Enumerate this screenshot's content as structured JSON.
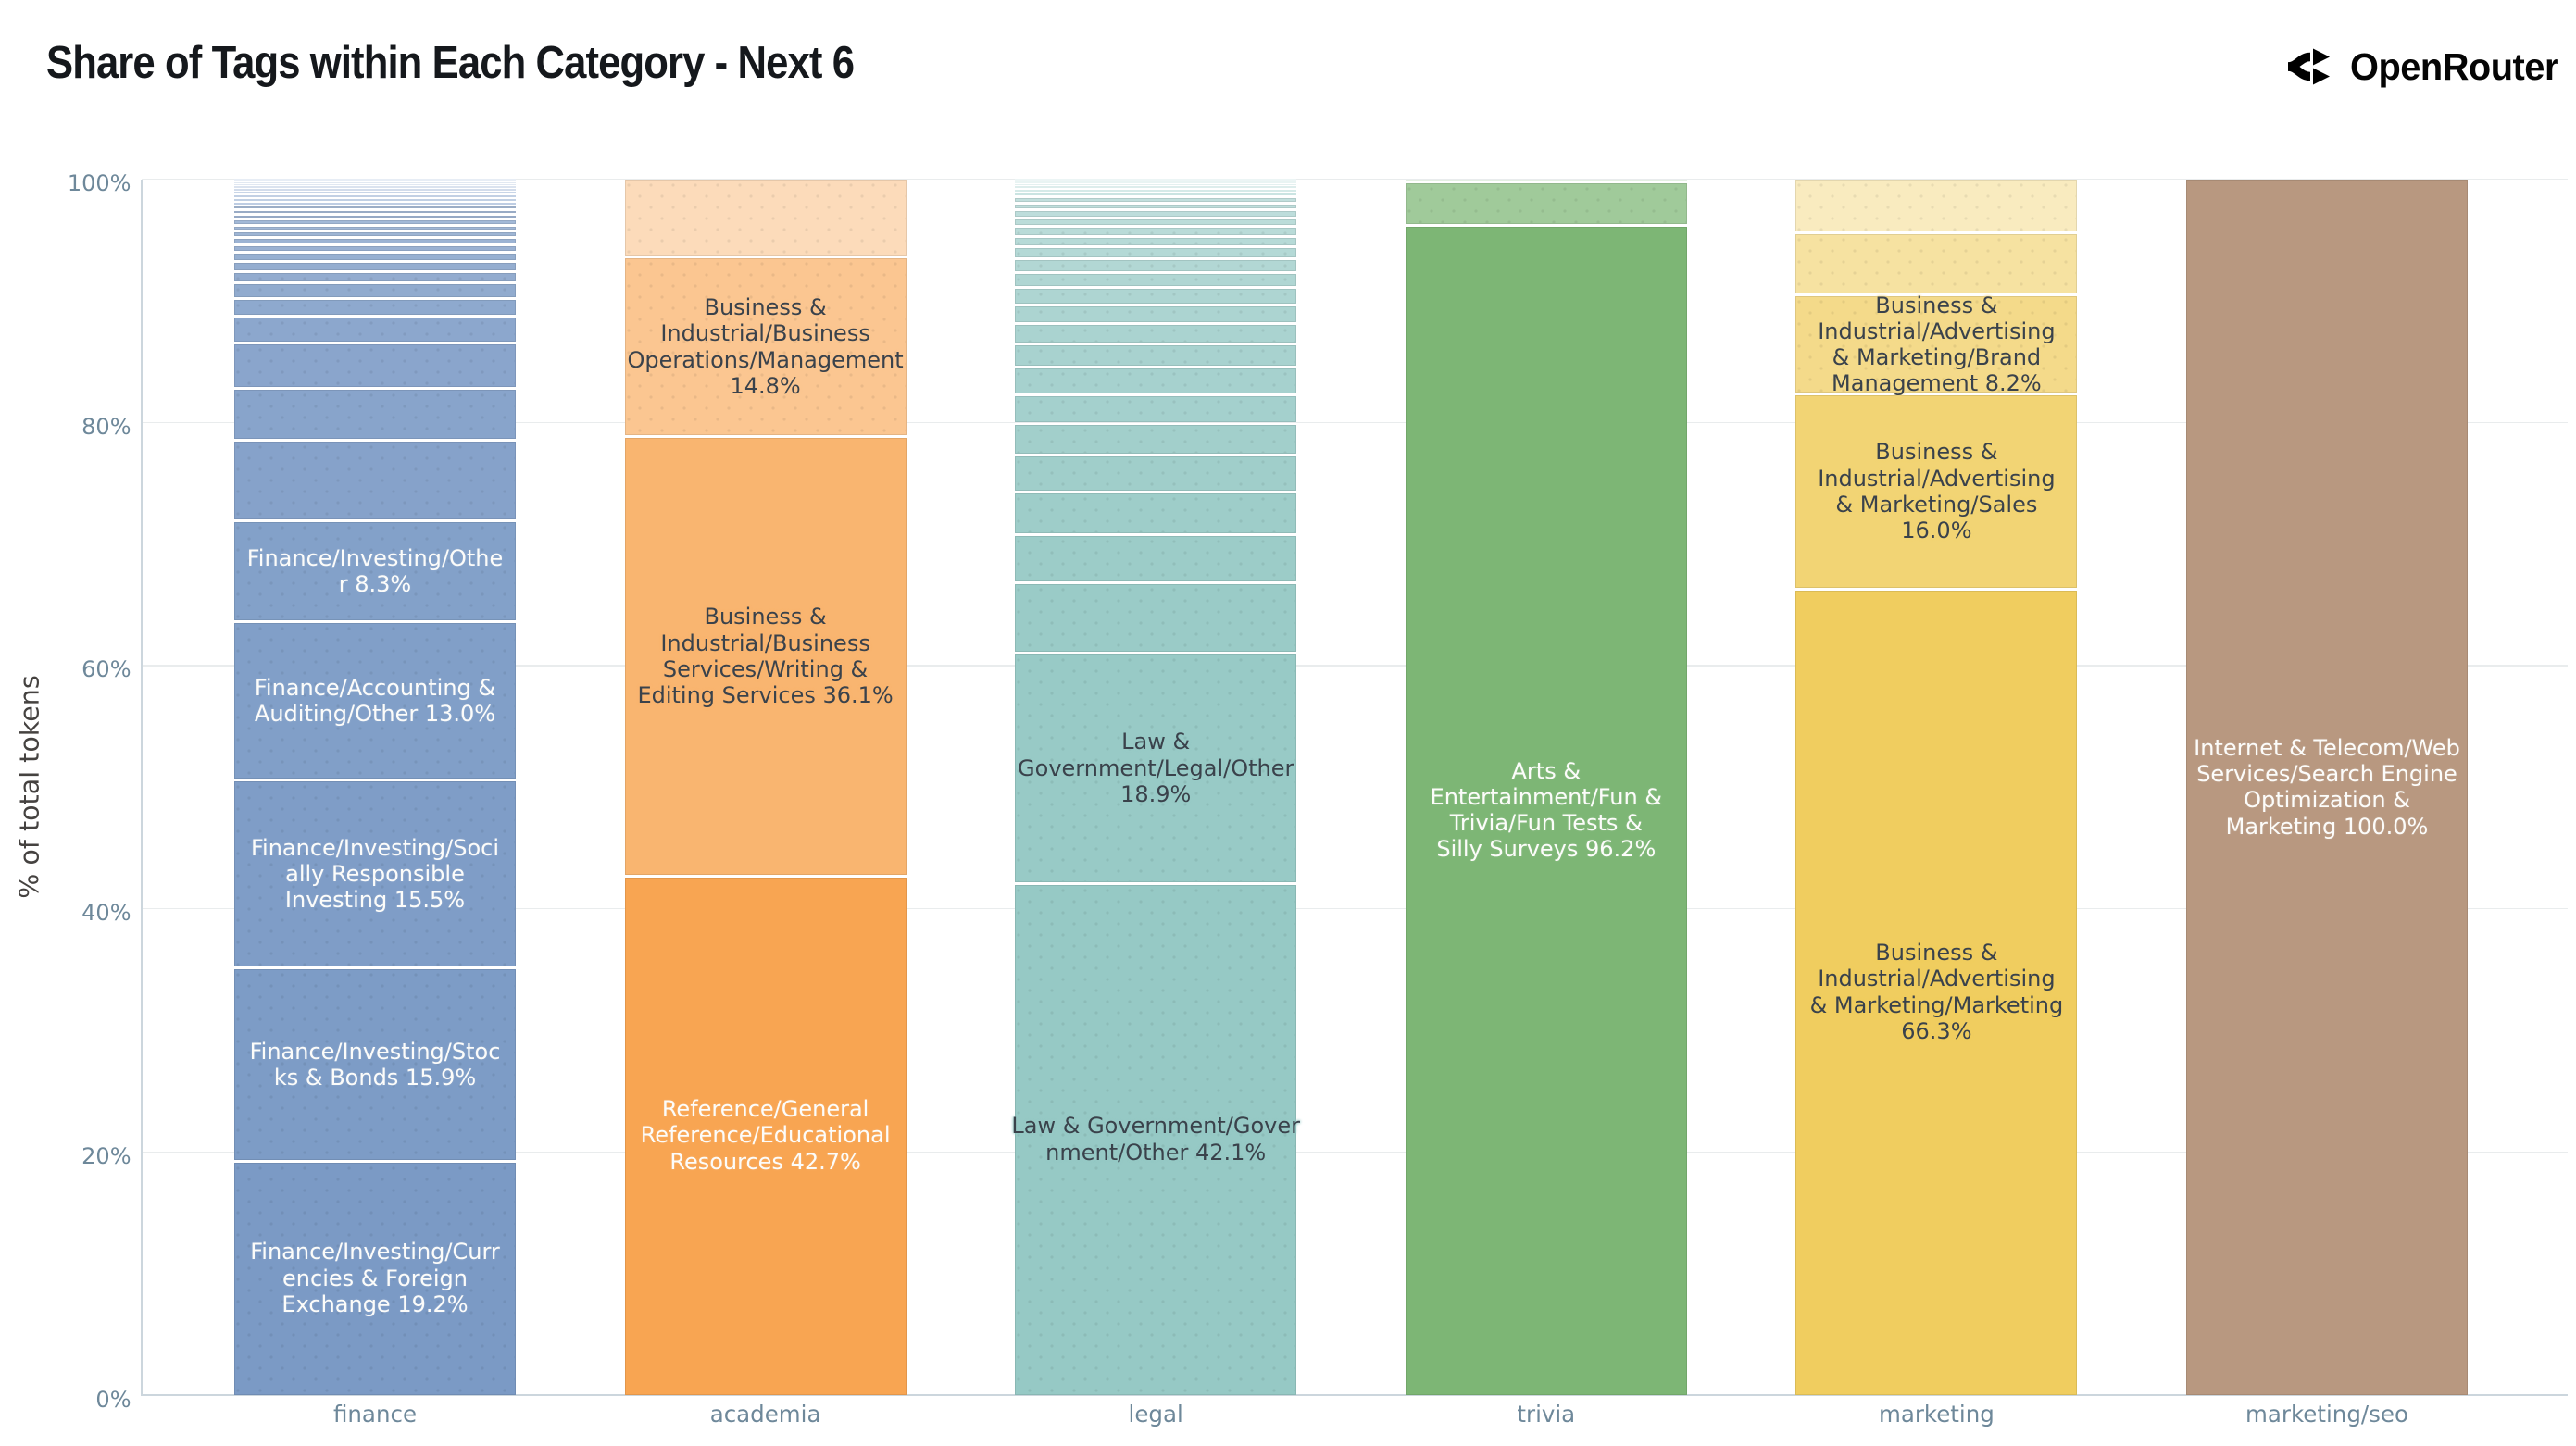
{
  "title": "Share of Tags within Each Category - Next 6",
  "brand": {
    "name": "OpenRouter",
    "icon": "openrouter-logo-icon"
  },
  "chart_data": {
    "type": "bar",
    "stacked": true,
    "units": "percent",
    "title": "Share of Tags within Each Category - Next 6",
    "xlabel": "",
    "ylabel": "% of total tokens",
    "ylim": [
      0,
      100
    ],
    "yticks": [
      {
        "value": 0,
        "label": "0%"
      },
      {
        "value": 20,
        "label": "20%"
      },
      {
        "value": 40,
        "label": "40%"
      },
      {
        "value": 60,
        "label": "60%"
      },
      {
        "value": 80,
        "label": "80%"
      },
      {
        "value": 100,
        "label": "100%"
      }
    ],
    "grid": true,
    "legend": "none",
    "categories": [
      "finance",
      "academia",
      "legal",
      "trivia",
      "marketing",
      "marketing/seo"
    ],
    "category_colors": {
      "finance": "#7b9ac5",
      "academia": "#f8a552",
      "legal": "#96c9c5",
      "trivia": "#7db675",
      "marketing": "#f0cd5f",
      "marketing/seo": "#b89880"
    },
    "bars": [
      {
        "category": "finance",
        "segments": [
          {
            "value": 19.2,
            "label": "Finance/Investing/Currencies & Foreign Exchange 19.2%",
            "label_lines": [
              "Finance/Investing/Curr",
              "encies & Foreign",
              "Exchange 19.2%"
            ]
          },
          {
            "value": 15.9,
            "label": "Finance/Investing/Stocks & Bonds 15.9%",
            "label_lines": [
              "Finance/Investing/Stoc",
              "ks & Bonds 15.9%"
            ]
          },
          {
            "value": 15.5,
            "label": "Finance/Investing/Socially Responsible Investing 15.5%",
            "label_lines": [
              "Finance/Investing/Soci",
              "ally Responsible",
              "Investing 15.5%"
            ]
          },
          {
            "value": 13.0,
            "label": "Finance/Accounting & Auditing/Other 13.0%",
            "label_lines": [
              "Finance/Accounting &",
              "Auditing/Other 13.0%"
            ]
          },
          {
            "value": 8.3,
            "label": "Finance/Investing/Other 8.3%",
            "label_lines": [
              "Finance/Investing/Othe",
              "r 8.3%"
            ]
          },
          {
            "value": 6.6,
            "label": null
          },
          {
            "value": 4.3,
            "label": null
          },
          {
            "value": 3.7,
            "label": null
          },
          {
            "value": 2.2,
            "label": null
          },
          {
            "value": 1.5,
            "label": null
          },
          {
            "value": 1.3,
            "label": null
          },
          {
            "value": 0.9,
            "label": null
          },
          {
            "value": 0.8,
            "label": null
          },
          {
            "value": 0.8,
            "label": null
          },
          {
            "value": 0.6,
            "label": null
          },
          {
            "value": 0.6,
            "label": null
          },
          {
            "value": 0.5,
            "label": null
          },
          {
            "value": 0.5,
            "label": null
          },
          {
            "value": 0.5,
            "label": null
          },
          {
            "value": 0.4,
            "label": null
          },
          {
            "value": 0.4,
            "label": null
          },
          {
            "value": 0.35,
            "label": null
          },
          {
            "value": 0.3,
            "label": null
          },
          {
            "value": 0.3,
            "label": null
          },
          {
            "value": 0.3,
            "label": null
          },
          {
            "value": 0.28,
            "label": null
          },
          {
            "value": 0.24,
            "label": null
          },
          {
            "value": 0.2,
            "label": null
          },
          {
            "value": 0.17,
            "label": null
          },
          {
            "value": 0.14,
            "label": null
          },
          {
            "value": 0.11,
            "label": null
          },
          {
            "value": 0.07,
            "label": null
          },
          {
            "value": 0.04,
            "label": null
          }
        ]
      },
      {
        "category": "academia",
        "segments": [
          {
            "value": 42.7,
            "label": "Reference/General Reference/Educational Resources 42.7%",
            "label_lines": [
              "Reference/General",
              "Reference/Educational",
              "Resources 42.7%"
            ]
          },
          {
            "value": 36.1,
            "label": "Business & Industrial/Business Services/Writing & Editing Services 36.1%",
            "label_lines": [
              "Business &",
              "Industrial/Business",
              "Services/Writing &",
              "Editing Services 36.1%"
            ]
          },
          {
            "value": 14.8,
            "label": "Business & Industrial/Business Operations/Management 14.8%",
            "label_lines": [
              "Business &",
              "Industrial/Business",
              "Operations/Management",
              "14.8%"
            ]
          },
          {
            "value": 6.4,
            "label": null
          }
        ]
      },
      {
        "category": "legal",
        "segments": [
          {
            "value": 42.1,
            "label": "Law & Government/Government/Other 42.1%",
            "label_lines": [
              "Law & Government/Gover",
              "nment/Other 42.1%"
            ]
          },
          {
            "value": 18.9,
            "label": "Law & Government/Legal/Other 18.9%",
            "label_lines": [
              "Law &",
              "Government/Legal/Other",
              "18.9%"
            ]
          },
          {
            "value": 5.84,
            "label": null
          },
          {
            "value": 3.9,
            "label": null
          },
          {
            "value": 3.49,
            "label": null
          },
          {
            "value": 3.06,
            "label": null
          },
          {
            "value": 2.64,
            "label": null
          },
          {
            "value": 2.36,
            "label": null
          },
          {
            "value": 2.23,
            "label": null
          },
          {
            "value": 1.95,
            "label": null
          },
          {
            "value": 1.67,
            "label": null
          },
          {
            "value": 1.54,
            "label": null
          },
          {
            "value": 1.39,
            "label": null
          },
          {
            "value": 1.25,
            "label": null
          },
          {
            "value": 1.11,
            "label": null
          },
          {
            "value": 0.98,
            "label": null
          },
          {
            "value": 0.84,
            "label": null
          },
          {
            "value": 0.84,
            "label": null
          },
          {
            "value": 0.7,
            "label": null
          },
          {
            "value": 0.69,
            "label": null
          },
          {
            "value": 0.56,
            "label": null
          },
          {
            "value": 0.55,
            "label": null
          },
          {
            "value": 0.34,
            "label": null
          },
          {
            "value": 0.28,
            "label": null
          },
          {
            "value": 0.24,
            "label": null
          },
          {
            "value": 0.2,
            "label": null
          },
          {
            "value": 0.16,
            "label": null
          },
          {
            "value": 0.12,
            "label": null
          },
          {
            "value": 0.07,
            "label": null
          }
        ]
      },
      {
        "category": "trivia",
        "segments": [
          {
            "value": 96.2,
            "label": "Arts & Entertainment/Fun & Trivia/Fun Tests & Silly Surveys 96.2%",
            "label_lines": [
              "Arts &",
              "Entertainment/Fun &",
              "Trivia/Fun Tests &",
              "Silly Surveys 96.2%"
            ]
          },
          {
            "value": 3.6,
            "label": null
          },
          {
            "value": 0.2,
            "label": null
          }
        ]
      },
      {
        "category": "marketing",
        "segments": [
          {
            "value": 66.3,
            "label": "Business & Industrial/Advertising & Marketing/Marketing 66.3%",
            "label_lines": [
              "Business &",
              "Industrial/Advertising",
              "& Marketing/Marketing",
              "66.3%"
            ]
          },
          {
            "value": 16.0,
            "label": "Business & Industrial/Advertising & Marketing/Sales 16.0%",
            "label_lines": [
              "Business &",
              "Industrial/Advertising",
              "& Marketing/Sales",
              "16.0%"
            ]
          },
          {
            "value": 8.2,
            "label": "Business & Industrial/Advertising & Marketing/Brand Management 8.2%",
            "label_lines": [
              "Business &",
              "Industrial/Advertising",
              "& Marketing/Brand",
              "Management 8.2%"
            ]
          },
          {
            "value": 5.1,
            "label": null
          },
          {
            "value": 4.4,
            "label": null
          }
        ]
      },
      {
        "category": "marketing/seo",
        "segments": [
          {
            "value": 100.0,
            "label": "Internet & Telecom/Web Services/Search Engine Optimization & Marketing 100.0%",
            "label_lines": [
              "Internet & Telecom/Web",
              "Services/Search Engine",
              "Optimization &",
              "Marketing 100.0%"
            ]
          }
        ]
      }
    ]
  }
}
